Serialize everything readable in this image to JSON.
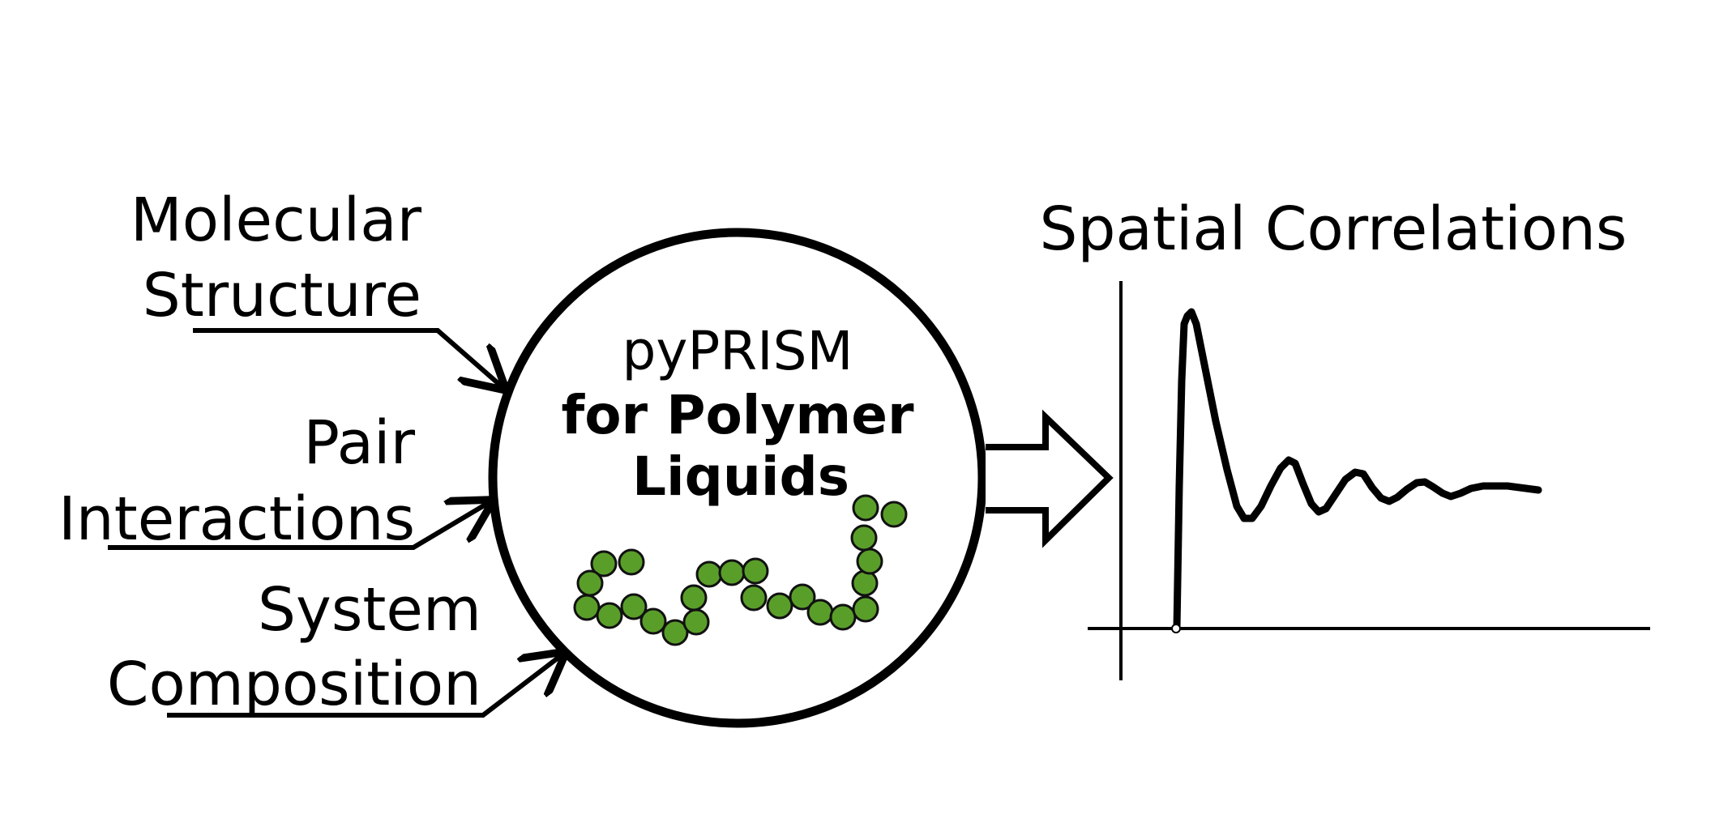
{
  "inputs": [
    {
      "line1": "Molecular",
      "line2": "Structure"
    },
    {
      "line1": "Pair",
      "line2": "Interactions"
    },
    {
      "line1": "System",
      "line2": "Composition"
    }
  ],
  "center": {
    "line1": "pyPRISM",
    "line2": "for Polymer",
    "line3": "Liquids"
  },
  "output": {
    "title": "Spatial Correlations"
  },
  "colors": {
    "stroke": "#000000",
    "bead_fill": "#5a9e2a",
    "bead_stroke": "#111111"
  }
}
